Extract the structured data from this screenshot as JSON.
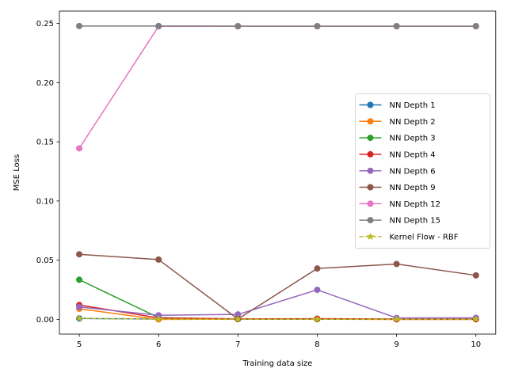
{
  "chart_data": {
    "type": "line",
    "title": "",
    "xlabel": "Training data size",
    "ylabel": "MSE Loss",
    "x": [
      5,
      6,
      7,
      8,
      9,
      10
    ],
    "xticks": [
      "5",
      "6",
      "7",
      "8",
      "9",
      "10"
    ],
    "yticks": [
      0.0,
      0.05,
      0.1,
      0.15,
      0.2,
      0.25
    ],
    "ytick_labels": [
      "0.00",
      "0.05",
      "0.10",
      "0.15",
      "0.20",
      "0.25"
    ],
    "xlim": [
      4.75,
      10.25
    ],
    "ylim": [
      -0.0124,
      0.2604
    ],
    "grid": false,
    "legend_position": "center-right",
    "series": [
      {
        "name": "NN Depth 1",
        "color": "#1f77b4",
        "marker": "circle",
        "linestyle": "solid",
        "values": [
          0.0008,
          0.0003,
          0.0003,
          0.0003,
          0.0003,
          0.0003
        ]
      },
      {
        "name": "NN Depth 2",
        "color": "#ff7f0e",
        "marker": "circle",
        "linestyle": "solid",
        "values": [
          0.009,
          0.0,
          0.0002,
          0.0002,
          0.0,
          0.0
        ]
      },
      {
        "name": "NN Depth 3",
        "color": "#2ca02c",
        "marker": "circle",
        "linestyle": "solid",
        "values": [
          0.0335,
          0.0015,
          0.0003,
          0.0003,
          0.0003,
          0.0003
        ]
      },
      {
        "name": "NN Depth 4",
        "color": "#d62728",
        "marker": "circle",
        "linestyle": "solid",
        "values": [
          0.0122,
          0.0012,
          0.0005,
          0.0006,
          0.0003,
          0.0003
        ]
      },
      {
        "name": "NN Depth 6",
        "color": "#9467bd",
        "marker": "circle",
        "linestyle": "solid",
        "values": [
          0.0105,
          0.0035,
          0.0042,
          0.025,
          0.0012,
          0.0013
        ]
      },
      {
        "name": "NN Depth 9",
        "color": "#8c564b",
        "marker": "circle",
        "linestyle": "solid",
        "values": [
          0.055,
          0.0505,
          0.0003,
          0.043,
          0.0468,
          0.0372
        ]
      },
      {
        "name": "NN Depth 12",
        "color": "#e377c2",
        "marker": "circle",
        "linestyle": "solid",
        "values": [
          0.1445,
          0.2475,
          0.2475,
          0.2475,
          0.2475,
          0.2475
        ]
      },
      {
        "name": "NN Depth 15",
        "color": "#7f7f7f",
        "marker": "circle",
        "linestyle": "solid",
        "values": [
          0.2478,
          0.2478,
          0.2477,
          0.2477,
          0.2477,
          0.2477
        ]
      },
      {
        "name": "Kernel Flow - RBF",
        "color": "#bcbd22",
        "marker": "star",
        "linestyle": "dashed",
        "values": [
          0.0008,
          0.0003,
          0.0002,
          0.0002,
          0.0002,
          0.0002
        ]
      }
    ]
  }
}
